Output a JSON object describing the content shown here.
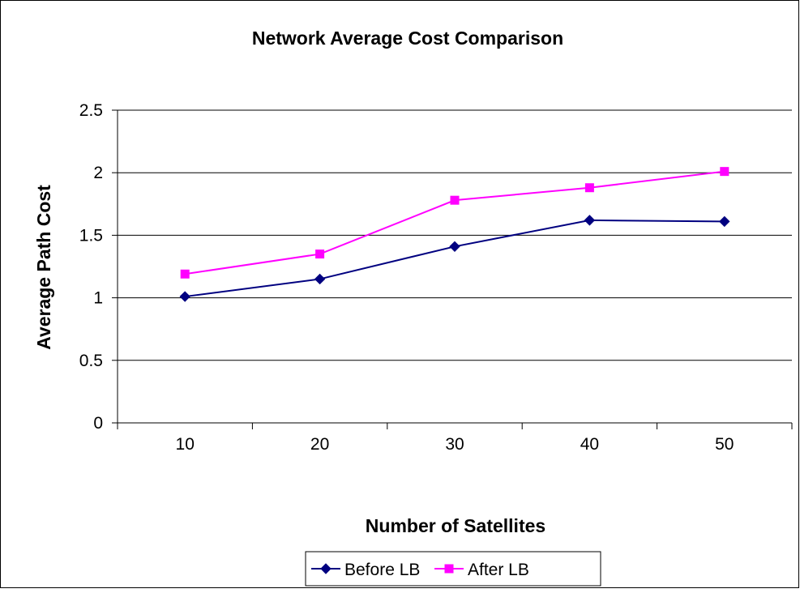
{
  "chart_data": {
    "type": "line",
    "title": "Network Average Cost Comparison",
    "xlabel": "Number of Satellites",
    "ylabel": "Average Path Cost",
    "categories": [
      "10",
      "20",
      "30",
      "40",
      "50"
    ],
    "ylim": [
      0,
      2.5
    ],
    "yticks": [
      "0",
      "0.5",
      "1",
      "1.5",
      "2",
      "2.5"
    ],
    "grid": "horizontal",
    "legend_position": "bottom",
    "series": [
      {
        "name": "Before LB",
        "values": [
          1.01,
          1.15,
          1.41,
          1.62,
          1.61
        ],
        "color": "#000080",
        "marker": "diamond"
      },
      {
        "name": "After LB",
        "values": [
          1.19,
          1.35,
          1.78,
          1.88,
          2.01
        ],
        "color": "#ff00ff",
        "marker": "square"
      }
    ]
  }
}
